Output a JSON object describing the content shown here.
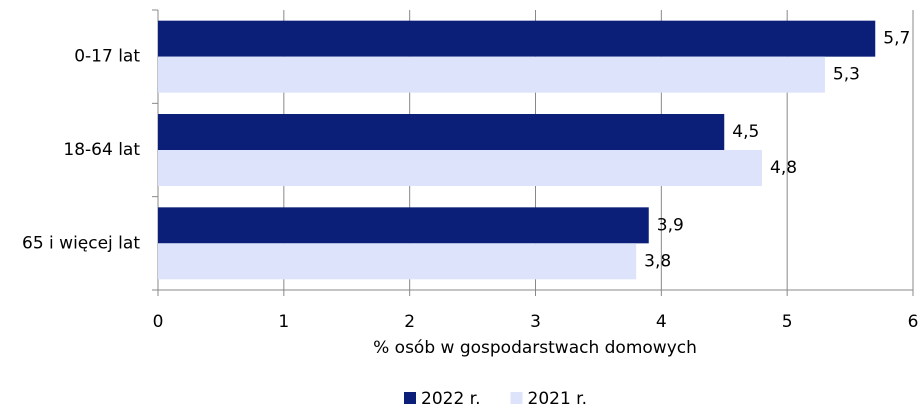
{
  "chart_data": {
    "type": "bar",
    "orientation": "horizontal",
    "categories": [
      "0-17 lat",
      "18-64 lat",
      "65 i więcej lat"
    ],
    "series": [
      {
        "name": "2022 r.",
        "color": "#0b1f78",
        "values": [
          5.7,
          4.5,
          3.9
        ],
        "value_labels": [
          "5,7",
          "4,5",
          "3,9"
        ]
      },
      {
        "name": "2021 r.",
        "color": "#dce3fa",
        "values": [
          5.3,
          4.8,
          3.8
        ],
        "value_labels": [
          "5,3",
          "4,8",
          "3,8"
        ]
      }
    ],
    "xlabel": "% osób w gospodarstwach domowych",
    "xlim": [
      0,
      6
    ],
    "xticks": [
      0,
      1,
      2,
      3,
      4,
      5,
      6
    ],
    "grid": true,
    "legend": "bottom"
  }
}
